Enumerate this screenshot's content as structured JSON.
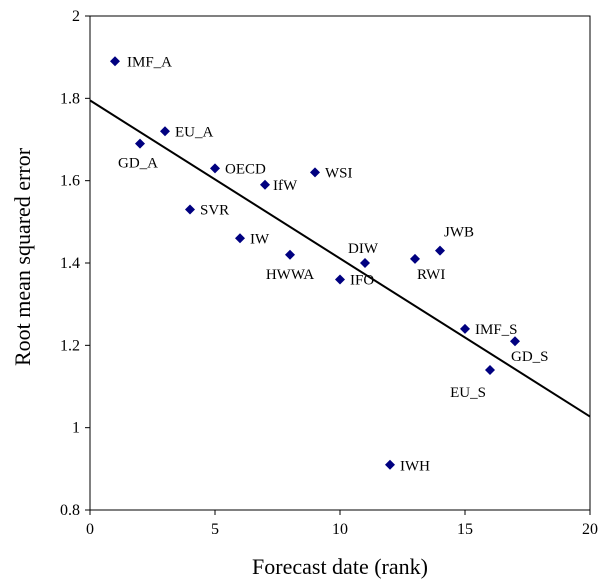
{
  "chart_data": {
    "type": "scatter",
    "xlabel": "Forecast date (rank)",
    "ylabel": "Root mean squared error",
    "xlim": [
      0,
      20
    ],
    "ylim": [
      0.8,
      2
    ],
    "xticks": [
      0,
      5,
      10,
      15,
      20
    ],
    "yticks": [
      0.8,
      1,
      1.2,
      1.4,
      1.6,
      1.8,
      2
    ],
    "ytick_labels": [
      "0.8",
      "1",
      "1.2",
      "1.4",
      "1.6",
      "1.8",
      "2"
    ],
    "marker_color": "#000080",
    "points": [
      {
        "label": "IMF_A",
        "x": 1,
        "y": 1.89
      },
      {
        "label": "GD_A",
        "x": 2,
        "y": 1.69
      },
      {
        "label": "EU_A",
        "x": 3,
        "y": 1.72
      },
      {
        "label": "SVR",
        "x": 4,
        "y": 1.53
      },
      {
        "label": "OECD",
        "x": 5,
        "y": 1.63
      },
      {
        "label": "IW",
        "x": 6,
        "y": 1.46
      },
      {
        "label": "IfW",
        "x": 7,
        "y": 1.59
      },
      {
        "label": "HWWA",
        "x": 8,
        "y": 1.42
      },
      {
        "label": "WSI",
        "x": 9,
        "y": 1.62
      },
      {
        "label": "IFO",
        "x": 10,
        "y": 1.36
      },
      {
        "label": "DIW",
        "x": 11,
        "y": 1.4
      },
      {
        "label": "IWH",
        "x": 12,
        "y": 0.91
      },
      {
        "label": "RWI",
        "x": 13,
        "y": 1.41
      },
      {
        "label": "JWB",
        "x": 14,
        "y": 1.43
      },
      {
        "label": "IMF_S",
        "x": 15,
        "y": 1.24
      },
      {
        "label": "EU_S",
        "x": 16,
        "y": 1.14
      },
      {
        "label": "GD_S",
        "x": 17,
        "y": 1.21
      }
    ],
    "trendline": {
      "x": [
        0,
        20
      ],
      "y": [
        1.795,
        1.027
      ]
    }
  }
}
